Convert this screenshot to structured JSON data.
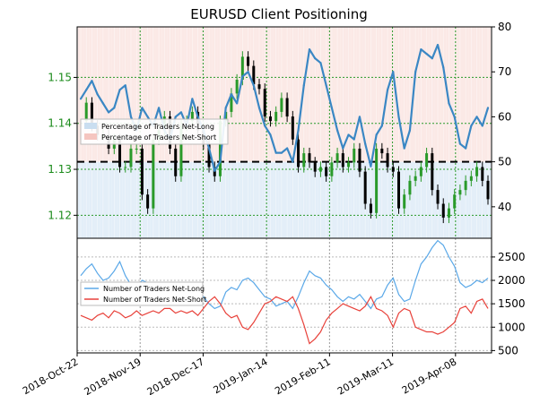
{
  "chart_data": [
    {
      "type": "line",
      "title": "EURUSD Client Positioning",
      "left_axis": {
        "ticks": [
          "1.15",
          "1.14",
          "1.13",
          "1.12"
        ],
        "range": [
          1.115,
          1.161
        ]
      },
      "right_axis": {
        "ticks": [
          "80",
          "70",
          "60",
          "50",
          "40"
        ],
        "range": [
          33,
          80
        ]
      },
      "reference_line": 50,
      "legend": {
        "placement": "left",
        "entries": [
          "Percentage of Traders Net-Long",
          "Percentage of Traders Net-Short"
        ]
      },
      "colors": {
        "net_long": "#3a87c4",
        "net_short": "#e8413a",
        "candle": "#000000",
        "bull_candle": "#2a9a2a"
      },
      "series": [
        {
          "name": "Percentage of Traders Net-Long",
          "values": [
            64,
            66,
            68,
            65,
            63,
            61,
            62,
            66,
            67,
            60,
            57,
            62,
            60,
            58,
            62,
            57,
            55,
            60,
            61,
            58,
            64,
            60,
            57,
            53,
            48,
            50,
            62,
            65,
            63,
            69,
            70,
            67,
            62,
            58,
            56,
            52,
            52,
            53,
            50,
            57,
            67,
            75,
            73,
            72,
            67,
            62,
            57,
            53,
            56,
            55,
            60,
            54,
            49,
            56,
            58,
            66,
            70,
            60,
            53,
            57,
            70,
            75,
            74,
            73,
            76,
            71,
            63,
            60,
            54,
            53,
            58,
            60,
            58,
            62
          ]
        }
      ],
      "price_close": [
        1.1405,
        1.1445,
        1.1395,
        1.1375,
        1.1375,
        1.1345,
        1.1365,
        1.1305,
        1.1305,
        1.1345,
        1.1345,
        1.1245,
        1.1215,
        1.1365,
        1.1385,
        1.1415,
        1.1345,
        1.1285,
        1.1395,
        1.1405,
        1.1425,
        1.1385,
        1.1355,
        1.1305,
        1.1285,
        1.1405,
        1.1425,
        1.1465,
        1.1495,
        1.1545,
        1.1525,
        1.1485,
        1.1475,
        1.1415,
        1.1405,
        1.1425,
        1.1455,
        1.1415,
        1.1365,
        1.1305,
        1.1335,
        1.1315,
        1.1295,
        1.1305,
        1.1285,
        1.1315,
        1.1335,
        1.1305,
        1.1315,
        1.1345,
        1.1295,
        1.1225,
        1.1205,
        1.1345,
        1.1335,
        1.1305,
        1.1295,
        1.1215,
        1.1245,
        1.1275,
        1.1285,
        1.1305,
        1.1335,
        1.1255,
        1.1225,
        1.1195,
        1.1215,
        1.1245,
        1.1255,
        1.1275,
        1.1285,
        1.1305,
        1.1275,
        1.1235
      ],
      "ylabel": ""
    },
    {
      "type": "line",
      "right_axis": {
        "ticks": [
          "2500",
          "2000",
          "1500",
          "1000",
          "500"
        ],
        "range": [
          450,
          2900
        ]
      },
      "legend": {
        "placement": "left",
        "entries": [
          "Number of Traders Net-Long",
          "Number of Traders Net-Short"
        ]
      },
      "x_ticks": [
        "2018-Oct-22",
        "2018-Nov-19",
        "2018-Dec-17",
        "2019-Jan-14",
        "2019-Feb-11",
        "2019-Mar-11",
        "2019-Apr-08"
      ],
      "series": [
        {
          "name": "Number of Traders Net-Long",
          "values": [
            2100,
            2250,
            2350,
            2150,
            2000,
            2050,
            2200,
            2400,
            2100,
            1900,
            1850,
            2000,
            1950,
            1850,
            1950,
            1800,
            1650,
            1750,
            1800,
            1700,
            1850,
            1750,
            1650,
            1500,
            1400,
            1450,
            1750,
            1850,
            1800,
            2000,
            2050,
            1950,
            1800,
            1650,
            1600,
            1450,
            1500,
            1550,
            1400,
            1650,
            1950,
            2200,
            2100,
            2050,
            1900,
            1800,
            1650,
            1550,
            1650,
            1600,
            1700,
            1550,
            1400,
            1600,
            1650,
            1900,
            2050,
            1700,
            1550,
            1600,
            2000,
            2350,
            2500,
            2700,
            2850,
            2750,
            2500,
            2300,
            1950,
            1850,
            1900,
            2000,
            1950,
            2050
          ]
        },
        {
          "name": "Number of Traders Net-Short",
          "values": [
            1250,
            1200,
            1150,
            1250,
            1300,
            1200,
            1350,
            1300,
            1200,
            1250,
            1350,
            1250,
            1300,
            1350,
            1300,
            1400,
            1400,
            1300,
            1350,
            1300,
            1350,
            1250,
            1400,
            1550,
            1650,
            1500,
            1300,
            1200,
            1250,
            1000,
            950,
            1100,
            1300,
            1500,
            1550,
            1650,
            1600,
            1550,
            1650,
            1400,
            1050,
            650,
            750,
            900,
            1150,
            1300,
            1400,
            1500,
            1450,
            1400,
            1350,
            1450,
            1650,
            1400,
            1350,
            1250,
            1000,
            1300,
            1400,
            1350,
            1000,
            950,
            900,
            900,
            850,
            900,
            1000,
            1100,
            1400,
            1450,
            1300,
            1550,
            1600,
            1400
          ]
        }
      ]
    }
  ]
}
